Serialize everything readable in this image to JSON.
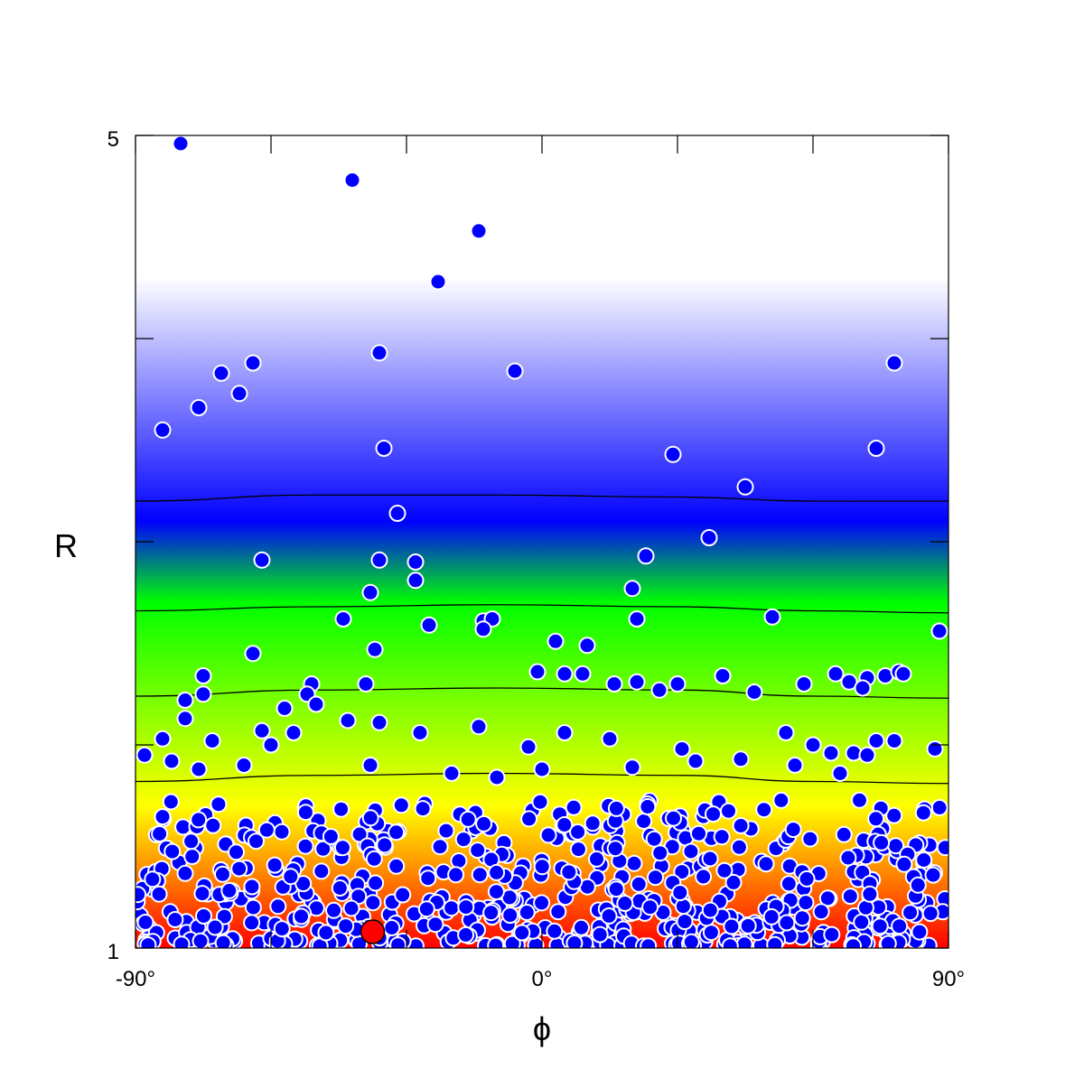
{
  "chart_data": {
    "type": "scatter",
    "title": "",
    "xlabel": "ϕ",
    "ylabel": "R",
    "xlim": [
      -90,
      90
    ],
    "ylim": [
      1,
      5
    ],
    "x_tick_labels": [
      "-90°",
      "0°",
      "90°"
    ],
    "y_tick_labels": [
      "5",
      "1"
    ],
    "x_ticks": [
      -90,
      -60,
      -30,
      0,
      30,
      60,
      90
    ],
    "y_ticks": [
      1,
      2,
      3,
      4,
      5
    ],
    "grid": false,
    "legend": "none",
    "background": {
      "type": "color-gradient-by-R",
      "stops": [
        {
          "R": 1.0,
          "color": "#ff0000"
        },
        {
          "R": 1.7,
          "color": "#ffff00"
        },
        {
          "R": 2.7,
          "color": "#00ff00"
        },
        {
          "R": 3.1,
          "color": "#0000ff"
        },
        {
          "R": 4.3,
          "color": "#ffffff"
        },
        {
          "R": 5.0,
          "color": "#ffffff"
        }
      ]
    },
    "contours": [
      {
        "R": 1.82,
        "points": [
          [
            -90,
            1.82
          ],
          [
            -50,
            1.85
          ],
          [
            -10,
            1.86
          ],
          [
            30,
            1.85
          ],
          [
            60,
            1.82
          ],
          [
            90,
            1.81
          ]
        ]
      },
      {
        "R": 2.24,
        "points": [
          [
            -90,
            2.24
          ],
          [
            -50,
            2.27
          ],
          [
            -10,
            2.28
          ],
          [
            30,
            2.27
          ],
          [
            60,
            2.24
          ],
          [
            90,
            2.23
          ]
        ]
      },
      {
        "R": 2.66,
        "points": [
          [
            -90,
            2.66
          ],
          [
            -50,
            2.68
          ],
          [
            -10,
            2.69
          ],
          [
            30,
            2.68
          ],
          [
            60,
            2.66
          ],
          [
            90,
            2.65
          ]
        ]
      },
      {
        "R": 3.2,
        "points": [
          [
            -90,
            3.2
          ],
          [
            -50,
            3.23
          ],
          [
            -10,
            3.23
          ],
          [
            30,
            3.22
          ],
          [
            60,
            3.2
          ],
          [
            90,
            3.2
          ]
        ]
      }
    ],
    "series": [
      {
        "marker_color": "#0000ff",
        "edge_color": "#ffffff",
        "points": [
          [
            -80,
            4.96
          ],
          [
            -42,
            4.78
          ],
          [
            -14,
            4.53
          ],
          [
            -23,
            4.28
          ],
          [
            -36,
            3.93
          ],
          [
            -6,
            3.84
          ],
          [
            78,
            3.88
          ],
          [
            -64,
            3.88
          ],
          [
            -71,
            3.83
          ],
          [
            -67,
            3.73
          ],
          [
            -76,
            3.66
          ],
          [
            -84,
            3.55
          ],
          [
            -35,
            3.46
          ],
          [
            29,
            3.43
          ],
          [
            74,
            3.46
          ],
          [
            45,
            3.27
          ],
          [
            -32,
            3.14
          ],
          [
            37,
            3.02
          ],
          [
            -62,
            2.91
          ],
          [
            -36,
            2.91
          ],
          [
            -28,
            2.9
          ],
          [
            23,
            2.93
          ],
          [
            -28,
            2.81
          ],
          [
            20,
            2.77
          ],
          [
            -38,
            2.75
          ],
          [
            -13,
            2.61
          ],
          [
            -11,
            2.62
          ],
          [
            -13,
            2.57
          ],
          [
            -44,
            2.62
          ],
          [
            -25,
            2.59
          ],
          [
            21,
            2.62
          ],
          [
            51,
            2.63
          ],
          [
            88,
            2.56
          ],
          [
            3,
            2.51
          ],
          [
            10,
            2.49
          ],
          [
            -37,
            2.47
          ],
          [
            -64,
            2.45
          ],
          [
            -75,
            2.34
          ],
          [
            -1,
            2.36
          ],
          [
            5,
            2.35
          ],
          [
            9,
            2.35
          ],
          [
            40,
            2.34
          ],
          [
            -51,
            2.3
          ],
          [
            -39,
            2.3
          ],
          [
            16,
            2.3
          ],
          [
            21,
            2.31
          ],
          [
            26,
            2.27
          ],
          [
            30,
            2.3
          ],
          [
            47,
            2.26
          ],
          [
            58,
            2.3
          ],
          [
            65,
            2.35
          ],
          [
            68,
            2.31
          ],
          [
            72,
            2.33
          ],
          [
            71,
            2.28
          ],
          [
            76,
            2.34
          ],
          [
            79,
            2.36
          ],
          [
            80,
            2.35
          ],
          [
            -75,
            2.25
          ],
          [
            -79,
            2.22
          ],
          [
            -52,
            2.25
          ],
          [
            -57,
            2.18
          ],
          [
            -50,
            2.2
          ],
          [
            -36,
            2.11
          ],
          [
            -43,
            2.12
          ],
          [
            -27,
            2.06
          ],
          [
            -14,
            2.09
          ],
          [
            -79,
            2.13
          ],
          [
            -84,
            2.03
          ],
          [
            -73,
            2.02
          ],
          [
            -62,
            2.07
          ],
          [
            -60,
            2.0
          ],
          [
            -55,
            2.06
          ],
          [
            5,
            2.06
          ],
          [
            -3,
            1.99
          ],
          [
            15,
            2.03
          ],
          [
            31,
            1.98
          ],
          [
            54,
            2.06
          ],
          [
            60,
            2.0
          ],
          [
            64,
            1.96
          ],
          [
            69,
            1.96
          ],
          [
            72,
            1.95
          ],
          [
            74,
            2.02
          ],
          [
            78,
            2.02
          ],
          [
            87,
            1.98
          ],
          [
            -88,
            1.95
          ],
          [
            -82,
            1.92
          ],
          [
            -76,
            1.88
          ],
          [
            -66,
            1.9
          ],
          [
            -38,
            1.9
          ],
          [
            -20,
            1.86
          ],
          [
            -10,
            1.84
          ],
          [
            0,
            1.88
          ],
          [
            20,
            1.89
          ],
          [
            34,
            1.92
          ],
          [
            44,
            1.93
          ],
          [
            56,
            1.9
          ],
          [
            66,
            1.86
          ]
        ]
      },
      {
        "marker_color": "#ff0000",
        "edge_color": "#000000",
        "points": [
          [
            -37.5,
            1.08
          ]
        ]
      }
    ],
    "dense_cluster": {
      "phi_range": [
        -90,
        90
      ],
      "R_range": [
        1.0,
        1.72
      ],
      "approx_count": 600
    }
  }
}
